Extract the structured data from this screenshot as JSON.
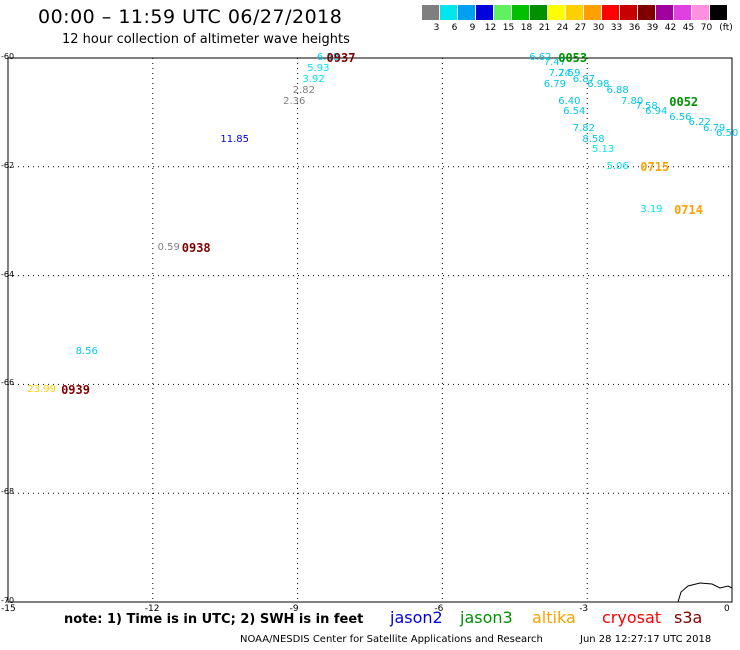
{
  "header": {
    "title": "00:00 – 11:59 UTC 06/27/2018",
    "subtitle": "12 hour collection of altimeter wave heights"
  },
  "scale": {
    "unit": "(ft)",
    "items": [
      {
        "label": "3",
        "color": "#7f7f7f"
      },
      {
        "label": "6",
        "color": "#00e5ee"
      },
      {
        "label": "9",
        "color": "#00a0f0"
      },
      {
        "label": "12",
        "color": "#0000dd"
      },
      {
        "label": "15",
        "color": "#60f060"
      },
      {
        "label": "18",
        "color": "#00c000"
      },
      {
        "label": "21",
        "color": "#009000"
      },
      {
        "label": "24",
        "color": "#ffff00"
      },
      {
        "label": "27",
        "color": "#ffd000"
      },
      {
        "label": "30",
        "color": "#ffa000"
      },
      {
        "label": "33",
        "color": "#ff0000"
      },
      {
        "label": "36",
        "color": "#c80000"
      },
      {
        "label": "39",
        "color": "#800000"
      },
      {
        "label": "42",
        "color": "#a000a0"
      },
      {
        "label": "45",
        "color": "#e040e0"
      },
      {
        "label": "70",
        "color": "#ff90e0"
      },
      {
        "label": "",
        "color": "#000000"
      }
    ]
  },
  "axes": {
    "lat_labels": [
      "-60",
      "-62",
      "-64",
      "-66",
      "-68",
      "-70"
    ],
    "lon_labels": [
      "-15",
      "-12",
      "-9",
      "-6",
      "-3",
      "0"
    ]
  },
  "observations": [
    {
      "text": "6.58",
      "lon": -8.6,
      "lat": -60.0,
      "color": "#00c8e8"
    },
    {
      "text": "5.93",
      "lon": -8.8,
      "lat": -60.2,
      "color": "#00e5ee"
    },
    {
      "text": "3.92",
      "lon": -8.9,
      "lat": -60.4,
      "color": "#00e5ee"
    },
    {
      "text": "2.82",
      "lon": -9.1,
      "lat": -60.6,
      "color": "#7f7f7f"
    },
    {
      "text": "2.36",
      "lon": -9.3,
      "lat": -60.8,
      "color": "#7f7f7f"
    },
    {
      "text": "11.85",
      "lon": -10.6,
      "lat": -61.5,
      "color": "#0000dd"
    },
    {
      "text": "0.59",
      "lon": -11.9,
      "lat": -63.5,
      "color": "#7f7f7f"
    },
    {
      "text": "8.56",
      "lon": -13.6,
      "lat": -65.4,
      "color": "#00c8e8"
    },
    {
      "text": "23.99",
      "lon": -14.6,
      "lat": -66.1,
      "color": "#ffd000"
    },
    {
      "text": "6.62",
      "lon": -4.2,
      "lat": -60.0,
      "color": "#00c8e8"
    },
    {
      "text": "7.47",
      "lon": -3.9,
      "lat": -60.1,
      "color": "#00c8e8"
    },
    {
      "text": "7.24",
      "lon": -3.8,
      "lat": -60.3,
      "color": "#00c8e8"
    },
    {
      "text": "7.59",
      "lon": -3.6,
      "lat": -60.3,
      "color": "#00c8e8"
    },
    {
      "text": "6.87",
      "lon": -3.3,
      "lat": -60.4,
      "color": "#00c8e8"
    },
    {
      "text": "6.79",
      "lon": -3.9,
      "lat": -60.5,
      "color": "#00c8e8"
    },
    {
      "text": "6.98",
      "lon": -3.0,
      "lat": -60.5,
      "color": "#00c8e8"
    },
    {
      "text": "6.40",
      "lon": -3.6,
      "lat": -60.8,
      "color": "#00c8e8"
    },
    {
      "text": "6.88",
      "lon": -2.6,
      "lat": -60.6,
      "color": "#00c8e8"
    },
    {
      "text": "7.80",
      "lon": -2.3,
      "lat": -60.8,
      "color": "#00c8e8"
    },
    {
      "text": "7.58",
      "lon": -2.0,
      "lat": -60.9,
      "color": "#00c8e8"
    },
    {
      "text": "6.94",
      "lon": -1.8,
      "lat": -61.0,
      "color": "#00c8e8"
    },
    {
      "text": "6.56",
      "lon": -1.3,
      "lat": -61.1,
      "color": "#00c8e8"
    },
    {
      "text": "6.22",
      "lon": -0.9,
      "lat": -61.2,
      "color": "#00c8e8"
    },
    {
      "text": "6.79",
      "lon": -0.6,
      "lat": -61.3,
      "color": "#00c8e8"
    },
    {
      "text": "6.50",
      "lon": -0.2,
      "lat": -61.4,
      "color": "#00c8e8"
    },
    {
      "text": "6.54",
      "lon": -3.5,
      "lat": -61.0,
      "color": "#00c8e8"
    },
    {
      "text": "7.82",
      "lon": -3.3,
      "lat": -61.3,
      "color": "#00c8e8"
    },
    {
      "text": "8.58",
      "lon": -3.1,
      "lat": -61.5,
      "color": "#00c8e8"
    },
    {
      "text": "5.13",
      "lon": -2.9,
      "lat": -61.7,
      "color": "#00e5ee"
    },
    {
      "text": "5.06",
      "lon": -2.6,
      "lat": -62.0,
      "color": "#00e5ee"
    },
    {
      "text": "3.19",
      "lon": -1.9,
      "lat": -62.8,
      "color": "#00e5ee"
    }
  ],
  "times": [
    {
      "text": "0937",
      "lon": -8.4,
      "lat": -60.0,
      "color": "#800000"
    },
    {
      "text": "0053",
      "lon": -3.6,
      "lat": -60.0,
      "color": "#009000"
    },
    {
      "text": "0052",
      "lon": -1.3,
      "lat": -60.8,
      "color": "#009000"
    },
    {
      "text": "0715",
      "lon": -1.9,
      "lat": -62.0,
      "color": "#ffa000"
    },
    {
      "text": "0714",
      "lon": -1.2,
      "lat": -62.8,
      "color": "#ffa000"
    },
    {
      "text": "0938",
      "lon": -11.4,
      "lat": -63.5,
      "color": "#800000"
    },
    {
      "text": "0939",
      "lon": -13.9,
      "lat": -66.1,
      "color": "#800000"
    }
  ],
  "footer": {
    "note": "note:  1) Time is in UTC; 2) SWH is in feet",
    "legend": [
      {
        "label": "jason2",
        "color": "#0000dd"
      },
      {
        "label": "jason3",
        "color": "#009000"
      },
      {
        "label": "altika",
        "color": "#ffa000"
      },
      {
        "label": "cryosat",
        "color": "#ff0000"
      },
      {
        "label": "s3a",
        "color": "#800000"
      }
    ],
    "credit": "NOAA/NESDIS Center for Satellite Applications and Research",
    "stamp": "Jun 28 12:27:17 UTC 2018"
  }
}
